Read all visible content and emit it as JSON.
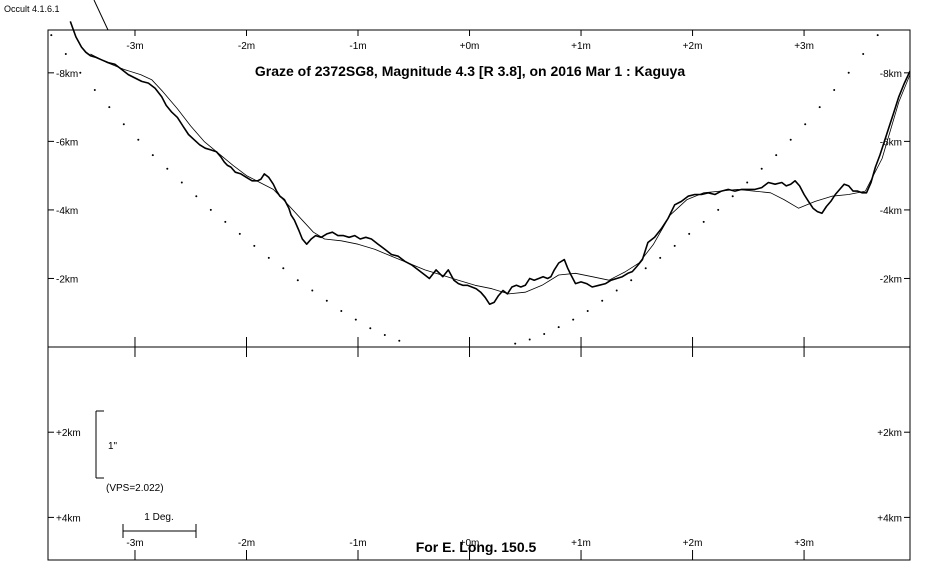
{
  "chart_data": {
    "type": "line",
    "title": "Graze of  2372SG8,  Magnitude 4.3 [R 3.8],  on 2016 Mar  1  :  Kaguya",
    "software_label": "Occult 4.1.6.1",
    "footer": "For E. Long. 150.5",
    "x_range": [
      -3.78,
      3.95
    ],
    "x_ticks": [
      -3,
      -2,
      -1,
      0,
      1,
      2,
      3
    ],
    "x_tick_labels": [
      "-3m",
      "-2m",
      "-1m",
      "+0m",
      "+1m",
      "+2m",
      "+3m"
    ],
    "top_panel": {
      "y_range": [
        0,
        -9.25
      ],
      "y_ticks": [
        -2,
        -4,
        -6,
        -8
      ],
      "y_tick_labels": [
        "-2km",
        "-4km",
        "-6km",
        "-8km"
      ]
    },
    "bottom_panel": {
      "y_range": [
        0,
        5
      ],
      "y_ticks": [
        2,
        4
      ],
      "y_tick_labels": [
        "+2km",
        "+4km"
      ],
      "scale_bar_label": "1\"",
      "vps_label": "(VPS=2.022)",
      "degree_bar_label": "1 Deg."
    },
    "series": [
      {
        "style": "kaguya-profile",
        "x": [
          -3.58,
          -3.53,
          -3.48,
          -3.44,
          -3.4,
          -3.35,
          -3.3,
          -3.24,
          -3.18,
          -3.12,
          -3.06,
          -3.0,
          -2.94,
          -2.88,
          -2.82,
          -2.76,
          -2.72,
          -2.67,
          -2.62,
          -2.57,
          -2.52,
          -2.47,
          -2.42,
          -2.37,
          -2.32,
          -2.27,
          -2.23,
          -2.2,
          -2.17,
          -2.14,
          -2.1,
          -2.05,
          -2.0,
          -1.95,
          -1.9,
          -1.87,
          -1.84,
          -1.8,
          -1.76,
          -1.73,
          -1.7,
          -1.66,
          -1.62,
          -1.6,
          -1.57,
          -1.53,
          -1.5,
          -1.46,
          -1.42,
          -1.38,
          -1.33,
          -1.28,
          -1.23,
          -1.18,
          -1.13,
          -1.08,
          -1.03,
          -0.98,
          -0.93,
          -0.88,
          -0.82,
          -0.76,
          -0.7,
          -0.64,
          -0.58,
          -0.52,
          -0.46,
          -0.4,
          -0.36,
          -0.3,
          -0.24,
          -0.19,
          -0.14,
          -0.1,
          -0.06,
          -0.02,
          0.02,
          0.06,
          0.1,
          0.14,
          0.18,
          0.22,
          0.26,
          0.3,
          0.34,
          0.38,
          0.42,
          0.46,
          0.5,
          0.54,
          0.58,
          0.62,
          0.66,
          0.7,
          0.73,
          0.76,
          0.8,
          0.85,
          0.88,
          0.91,
          0.95,
          1.0,
          1.05,
          1.1,
          1.16,
          1.22,
          1.27,
          1.32,
          1.37,
          1.42,
          1.46,
          1.5,
          1.55,
          1.6,
          1.66,
          1.72,
          1.78,
          1.84,
          1.9,
          1.96,
          2.02,
          2.08,
          2.14,
          2.2,
          2.26,
          2.32,
          2.38,
          2.44,
          2.5,
          2.56,
          2.62,
          2.68,
          2.74,
          2.8,
          2.84,
          2.88,
          2.92,
          2.96,
          3.0,
          3.04,
          3.08,
          3.12,
          3.16,
          3.2,
          3.24,
          3.28,
          3.32,
          3.36,
          3.4,
          3.44,
          3.48,
          3.52,
          3.56,
          3.6,
          3.64,
          3.68,
          3.72,
          3.76,
          3.8,
          3.85,
          3.9,
          3.95
        ],
        "y": [
          -9.5,
          -9.05,
          -8.75,
          -8.6,
          -8.5,
          -8.45,
          -8.38,
          -8.3,
          -8.25,
          -8.1,
          -7.95,
          -7.85,
          -7.75,
          -7.7,
          -7.55,
          -7.3,
          -7.05,
          -6.85,
          -6.7,
          -6.45,
          -6.2,
          -6.05,
          -5.9,
          -5.8,
          -5.75,
          -5.7,
          -5.55,
          -5.4,
          -5.3,
          -5.25,
          -5.1,
          -5.05,
          -4.95,
          -4.85,
          -4.85,
          -4.9,
          -5.05,
          -4.95,
          -4.75,
          -4.55,
          -4.4,
          -4.3,
          -4.05,
          -3.85,
          -3.7,
          -3.4,
          -3.15,
          -3.0,
          -3.15,
          -3.25,
          -3.2,
          -3.3,
          -3.35,
          -3.25,
          -3.25,
          -3.2,
          -3.25,
          -3.15,
          -3.2,
          -3.15,
          -3.0,
          -2.85,
          -2.7,
          -2.65,
          -2.5,
          -2.4,
          -2.25,
          -2.1,
          -2.0,
          -2.25,
          -2.05,
          -2.25,
          -1.95,
          -1.85,
          -1.8,
          -1.8,
          -1.75,
          -1.7,
          -1.6,
          -1.45,
          -1.25,
          -1.3,
          -1.5,
          -1.65,
          -1.55,
          -1.75,
          -1.8,
          -1.75,
          -1.8,
          -2.0,
          -1.95,
          -2.0,
          -2.05,
          -2.0,
          -2.05,
          -2.25,
          -2.45,
          -2.55,
          -2.3,
          -2.1,
          -1.85,
          -1.9,
          -1.85,
          -1.75,
          -1.8,
          -1.85,
          -1.95,
          -2.0,
          -2.05,
          -2.15,
          -2.2,
          -2.35,
          -2.55,
          -3.05,
          -3.2,
          -3.45,
          -3.75,
          -4.15,
          -4.25,
          -4.4,
          -4.45,
          -4.45,
          -4.5,
          -4.45,
          -4.55,
          -4.6,
          -4.55,
          -4.6,
          -4.6,
          -4.6,
          -4.65,
          -4.8,
          -4.75,
          -4.8,
          -4.7,
          -4.75,
          -4.85,
          -4.7,
          -4.45,
          -4.25,
          -4.05,
          -3.95,
          -3.9,
          -4.1,
          -4.25,
          -4.45,
          -4.6,
          -4.75,
          -4.7,
          -4.55,
          -4.55,
          -4.5,
          -4.5,
          -4.8,
          -5.25,
          -5.6,
          -6.0,
          -6.4,
          -6.8,
          -7.3,
          -7.7,
          -8.05
        ]
      },
      {
        "style": "smoothed-profile",
        "x": [
          -3.4,
          -3.25,
          -3.1,
          -2.95,
          -2.85,
          -2.75,
          -2.62,
          -2.5,
          -2.38,
          -2.25,
          -2.12,
          -2.0,
          -1.88,
          -1.76,
          -1.64,
          -1.5,
          -1.4,
          -1.3,
          -1.15,
          -1.0,
          -0.85,
          -0.7,
          -0.55,
          -0.4,
          -0.25,
          -0.1,
          0.05,
          0.2,
          0.35,
          0.5,
          0.65,
          0.8,
          0.95,
          1.1,
          1.25,
          1.4,
          1.52,
          1.65,
          1.8,
          1.95,
          2.1,
          2.25,
          2.4,
          2.55,
          2.7,
          2.82,
          2.95,
          3.1,
          3.25,
          3.4,
          3.55,
          3.7,
          3.85,
          3.95
        ],
        "y": [
          -8.55,
          -8.3,
          -8.1,
          -7.95,
          -7.8,
          -7.45,
          -6.95,
          -6.45,
          -6.0,
          -5.65,
          -5.3,
          -5.0,
          -4.8,
          -4.6,
          -4.2,
          -3.7,
          -3.35,
          -3.15,
          -3.1,
          -3.0,
          -2.85,
          -2.65,
          -2.45,
          -2.25,
          -2.1,
          -1.95,
          -1.8,
          -1.7,
          -1.55,
          -1.6,
          -1.8,
          -2.1,
          -2.15,
          -2.05,
          -1.95,
          -2.2,
          -2.45,
          -3.0,
          -3.85,
          -4.3,
          -4.5,
          -4.55,
          -4.6,
          -4.55,
          -4.5,
          -4.3,
          -4.05,
          -4.25,
          -4.4,
          -4.45,
          -4.55,
          -5.5,
          -7.15,
          -7.95
        ]
      },
      {
        "style": "limb-dots",
        "x": [
          -3.75,
          -3.62,
          -3.49,
          -3.36,
          -3.23,
          -3.1,
          -2.97,
          -2.84,
          -2.71,
          -2.58,
          -2.45,
          -2.32,
          -2.19,
          -2.06,
          -1.93,
          -1.8,
          -1.67,
          -1.54,
          -1.41,
          -1.28,
          -1.15,
          -1.02,
          -0.89,
          -0.76,
          -0.63,
          -0.5,
          -0.37,
          -0.24,
          -0.11,
          0.02,
          0.15,
          0.28,
          0.41,
          0.54,
          0.67,
          0.8,
          0.93,
          1.06,
          1.19,
          1.32,
          1.45,
          1.58,
          1.71,
          1.84,
          1.97,
          2.1,
          2.23,
          2.36,
          2.49,
          2.62,
          2.75,
          2.88,
          3.01,
          3.14,
          3.27,
          3.4,
          3.53,
          3.66,
          3.79,
          3.92
        ],
        "y": [
          -9.1,
          -8.55,
          -8.0,
          -7.5,
          -7.0,
          -6.5,
          -6.05,
          -5.6,
          -5.2,
          -4.8,
          -4.4,
          -4.0,
          -3.65,
          -3.3,
          -2.95,
          -2.6,
          -2.3,
          -1.95,
          -1.65,
          -1.35,
          -1.05,
          -0.8,
          -0.55,
          -0.35,
          -0.18,
          -0.05,
          0.05,
          0.1,
          0.12,
          0.1,
          0.06,
          0.0,
          -0.1,
          -0.22,
          -0.38,
          -0.58,
          -0.8,
          -1.05,
          -1.35,
          -1.65,
          -1.95,
          -2.3,
          -2.6,
          -2.95,
          -3.3,
          -3.65,
          -4.0,
          -4.4,
          -4.8,
          -5.2,
          -5.6,
          -6.05,
          -6.5,
          -7.0,
          -7.5,
          -8.0,
          -8.55,
          -9.1,
          -9.65,
          -10.2
        ]
      }
    ]
  }
}
